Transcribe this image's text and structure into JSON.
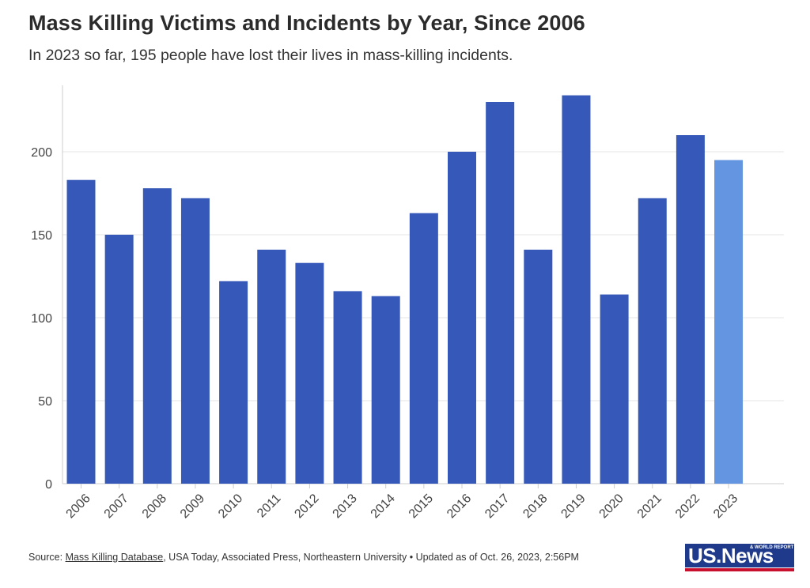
{
  "header": {
    "title": "Mass Killing Victims and Incidents by Year, Since 2006",
    "subtitle": "In 2023 so far, 195 people have lost their lives in mass-killing incidents."
  },
  "chart_data": {
    "type": "bar",
    "categories": [
      "2006",
      "2007",
      "2008",
      "2009",
      "2010",
      "2011",
      "2012",
      "2013",
      "2014",
      "2015",
      "2016",
      "2017",
      "2018",
      "2019",
      "2020",
      "2021",
      "2022",
      "2023"
    ],
    "values": [
      183,
      150,
      178,
      172,
      122,
      141,
      133,
      116,
      113,
      163,
      200,
      230,
      141,
      234,
      114,
      172,
      210,
      195
    ],
    "ylim": [
      0,
      240
    ],
    "yticks": [
      0,
      50,
      100,
      150,
      200
    ],
    "grid": true,
    "colors": {
      "bar": "#3659b9",
      "highlight": "#6495e0",
      "grid": "#e6e6e6",
      "axis": "#cccccc"
    },
    "highlight_index": 17
  },
  "footer": {
    "prefix": "Source: ",
    "link": "Mass Killing Database",
    "rest": ", USA Today, Associated Press, Northeastern University • Updated as of Oct. 26, 2023, 2:56PM"
  },
  "logo": {
    "word": "US.News",
    "tag": "& WORLD REPORT",
    "colors": {
      "box": "#1f3a8a",
      "stripe": "#c8102e"
    }
  }
}
